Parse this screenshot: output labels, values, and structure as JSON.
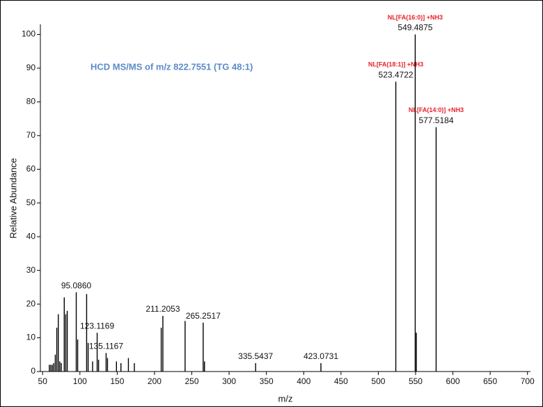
{
  "chart_data": {
    "type": "spectrum",
    "title": "HCD MS/MS of m/z 822.7551 (TG 48:1)",
    "x_label": "m/z",
    "y_label": "Relative Abundance",
    "color": "#000000",
    "title_color": "#5b8bc9",
    "note_color": "#e8202a",
    "xlim": [
      47,
      704
    ],
    "ylim": [
      0,
      103
    ],
    "xticks": [
      50,
      100,
      150,
      200,
      250,
      300,
      350,
      400,
      450,
      500,
      550,
      600,
      650,
      700
    ],
    "yticks": [
      0,
      10,
      20,
      30,
      40,
      50,
      60,
      70,
      80,
      90,
      100
    ],
    "x": [
      59,
      61,
      63,
      65,
      67,
      69,
      71,
      73,
      75,
      79,
      81,
      83,
      95.086,
      97,
      109,
      111,
      117,
      123.1169,
      125,
      135.1167,
      137,
      149,
      155,
      165,
      173,
      209,
      211.2053,
      241,
      265.2517,
      267,
      335.5437,
      423.0731,
      523.4722,
      549.4875,
      551,
      577.5184
    ],
    "values": [
      2,
      2,
      2,
      2.5,
      5,
      13,
      17,
      3,
      2.5,
      22,
      17,
      18,
      23.5,
      9.5,
      23,
      8.5,
      3,
      11.5,
      3.5,
      5.5,
      4,
      3,
      2.5,
      4,
      2.5,
      13,
      16.5,
      15,
      14.5,
      3,
      2.5,
      2.5,
      86,
      100,
      11.5,
      72.5
    ],
    "x_labels": [
      null,
      null,
      null,
      null,
      null,
      null,
      null,
      null,
      null,
      null,
      null,
      null,
      "95.0860",
      null,
      null,
      null,
      null,
      "123.1169",
      null,
      "135.1167",
      null,
      null,
      null,
      null,
      null,
      null,
      "211.2053",
      null,
      "265.2517",
      null,
      "335.5437",
      "423.0731",
      "523.4722",
      "549.4875",
      null,
      "577.5184"
    ],
    "notes": [
      null,
      null,
      null,
      null,
      null,
      null,
      null,
      null,
      null,
      null,
      null,
      null,
      null,
      null,
      null,
      null,
      null,
      null,
      null,
      null,
      null,
      null,
      null,
      null,
      null,
      null,
      null,
      null,
      null,
      null,
      null,
      null,
      "NL[FA(18:1)] +NH3",
      "NL[FA(16:0)] +NH3",
      null,
      "NL[FA(14:0)] +NH3"
    ]
  }
}
